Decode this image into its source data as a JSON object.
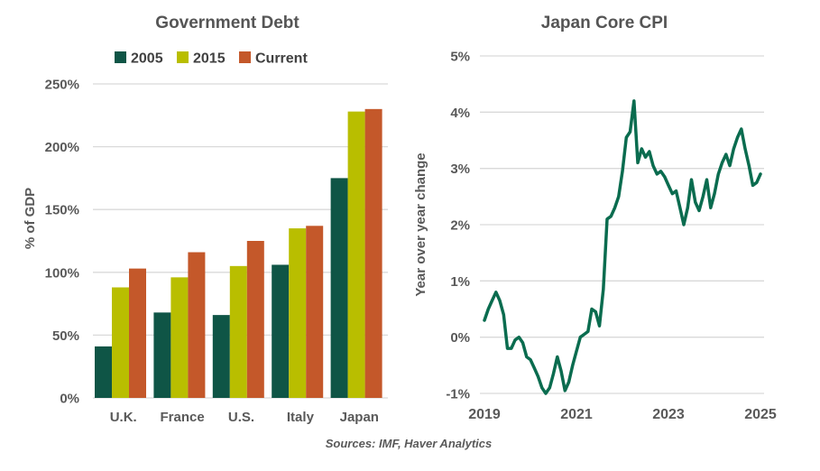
{
  "page": {
    "background": "#FFFFFF",
    "footer": "Sources: IMF, Haver Analytics",
    "text_color": "#595959",
    "legend_text_color": "#404040",
    "gridline_color": "#D9D9D9"
  },
  "chart_data": [
    {
      "type": "bar",
      "title": "Government Debt",
      "ylabel": "% of GDP",
      "ylim": [
        0,
        250
      ],
      "ytick_step": 50,
      "ytick_suffix": "%",
      "grid": true,
      "legend_position": "top",
      "categories": [
        "U.K.",
        "France",
        "U.S.",
        "Italy",
        "Japan"
      ],
      "series": [
        {
          "name": "2005",
          "color": "#0F5546",
          "values": [
            41,
            68,
            66,
            106,
            175
          ]
        },
        {
          "name": "2015",
          "color": "#B9BE00",
          "values": [
            88,
            96,
            105,
            135,
            228
          ]
        },
        {
          "name": "Current",
          "color": "#C4582A",
          "values": [
            103,
            116,
            125,
            137,
            230
          ]
        }
      ]
    },
    {
      "type": "line",
      "title": "Japan Core CPI",
      "ylabel": "Year over year change",
      "ylim": [
        -1,
        5
      ],
      "ytick_step": 1,
      "ytick_suffix": "%",
      "grid": true,
      "line_color": "#0A6C4F",
      "frequency": "monthly",
      "x_start": "2019-01",
      "x_end": "2025-01",
      "xticks": [
        2019,
        2021,
        2023,
        2025
      ],
      "values": [
        0.3,
        0.5,
        0.65,
        0.8,
        0.65,
        0.4,
        -0.2,
        -0.2,
        -0.05,
        0.0,
        -0.1,
        -0.35,
        -0.4,
        -0.55,
        -0.7,
        -0.9,
        -1.0,
        -0.9,
        -0.65,
        -0.35,
        -0.6,
        -0.95,
        -0.8,
        -0.5,
        -0.25,
        0.0,
        0.05,
        0.1,
        0.5,
        0.45,
        0.2,
        0.85,
        2.1,
        2.15,
        2.3,
        2.5,
        2.95,
        3.55,
        3.65,
        4.2,
        3.1,
        3.35,
        3.2,
        3.3,
        3.05,
        2.9,
        2.95,
        2.85,
        2.7,
        2.55,
        2.6,
        2.3,
        2.0,
        2.3,
        2.8,
        2.4,
        2.25,
        2.5,
        2.8,
        2.3,
        2.55,
        2.9,
        3.1,
        3.25,
        3.05,
        3.35,
        3.55,
        3.7,
        3.35,
        3.05,
        2.7,
        2.75,
        2.9
      ]
    }
  ]
}
